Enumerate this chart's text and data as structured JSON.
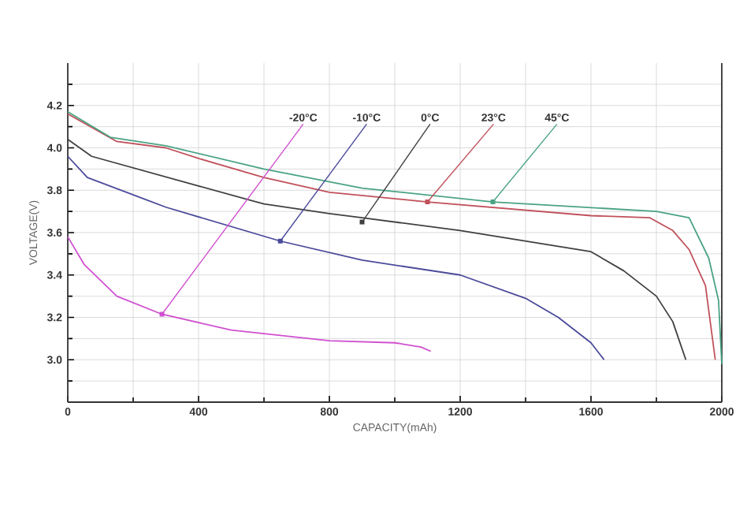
{
  "chart_data": {
    "type": "line",
    "xlabel": "CAPACITY(mAh)",
    "ylabel": "VOLTAGE(V)",
    "xlim": [
      0,
      2000
    ],
    "ylim": [
      2.8,
      4.4
    ],
    "xticks": [
      0,
      {
        "value": 200,
        "label": null
      },
      400,
      {
        "value": 600,
        "label": null
      },
      800,
      {
        "value": 1000,
        "label": null
      },
      1200,
      {
        "value": 1400,
        "label": null
      },
      1600,
      {
        "value": 1800,
        "label": null
      },
      2000
    ],
    "yticks": [
      {
        "value": 2.9,
        "label": null
      },
      {
        "value": 3.0,
        "label": "3.0"
      },
      {
        "value": 3.1,
        "label": null
      },
      {
        "value": 3.2,
        "label": "3.2"
      },
      {
        "value": 3.3,
        "label": null
      },
      {
        "value": 3.4,
        "label": "3.4"
      },
      {
        "value": 3.5,
        "label": null
      },
      {
        "value": 3.6,
        "label": "3.6"
      },
      {
        "value": 3.7,
        "label": null
      },
      {
        "value": 3.8,
        "label": "3.8"
      },
      {
        "value": 3.9,
        "label": null
      },
      {
        "value": 4.0,
        "label": "4.0"
      },
      {
        "value": 4.1,
        "label": null
      },
      {
        "value": 4.2,
        "label": "4.2"
      },
      {
        "value": 4.3,
        "label": null
      }
    ],
    "grid": true,
    "marker": "none",
    "line_style": "solid",
    "series": [
      {
        "color": "#d050d0",
        "x": [
          0,
          50,
          150,
          288,
          500,
          800,
          1000,
          1080,
          1110
        ],
        "values": [
          3.58,
          3.45,
          3.3,
          3.215,
          3.14,
          3.09,
          3.08,
          3.06,
          3.04
        ]
      },
      {
        "color": "#4a4a9a",
        "x": [
          0,
          60,
          300,
          650,
          900,
          1200,
          1400,
          1500,
          1600,
          1640
        ],
        "values": [
          3.96,
          3.86,
          3.72,
          3.56,
          3.47,
          3.4,
          3.29,
          3.2,
          3.08,
          3.0
        ]
      },
      {
        "color": "#404040",
        "x": [
          0,
          73,
          400,
          600,
          800,
          900,
          1200,
          1600,
          1700,
          1800,
          1850,
          1890
        ],
        "values": [
          4.04,
          3.96,
          3.82,
          3.735,
          3.69,
          3.67,
          3.61,
          3.51,
          3.42,
          3.3,
          3.18,
          3.0
        ]
      },
      {
        "color": "#c0505a",
        "x": [
          0,
          150,
          300,
          400,
          600,
          800,
          1100,
          1600,
          1780,
          1850,
          1900,
          1950,
          1980
        ],
        "values": [
          4.16,
          4.03,
          4.0,
          3.95,
          3.86,
          3.79,
          3.745,
          3.68,
          3.67,
          3.61,
          3.52,
          3.35,
          3.0
        ]
      },
      {
        "color": "#4aa383",
        "x": [
          0,
          130,
          300,
          600,
          900,
          1300,
          1800,
          1900,
          1960,
          1990,
          2000
        ],
        "values": [
          4.17,
          4.05,
          4.01,
          3.9,
          3.81,
          3.745,
          3.7,
          3.67,
          3.48,
          3.28,
          2.98
        ]
      }
    ],
    "annotations": [
      {
        "text": "-20°C",
        "x": 288,
        "y": 3.215
      },
      {
        "text": "-10°C",
        "x": 650,
        "y": 3.56
      },
      {
        "text": "0°C",
        "x": 900,
        "y": 3.65
      },
      {
        "text": "23°C",
        "x": 1100,
        "y": 3.745
      },
      {
        "text": "45°C",
        "x": 1300,
        "y": 3.745
      }
    ]
  }
}
